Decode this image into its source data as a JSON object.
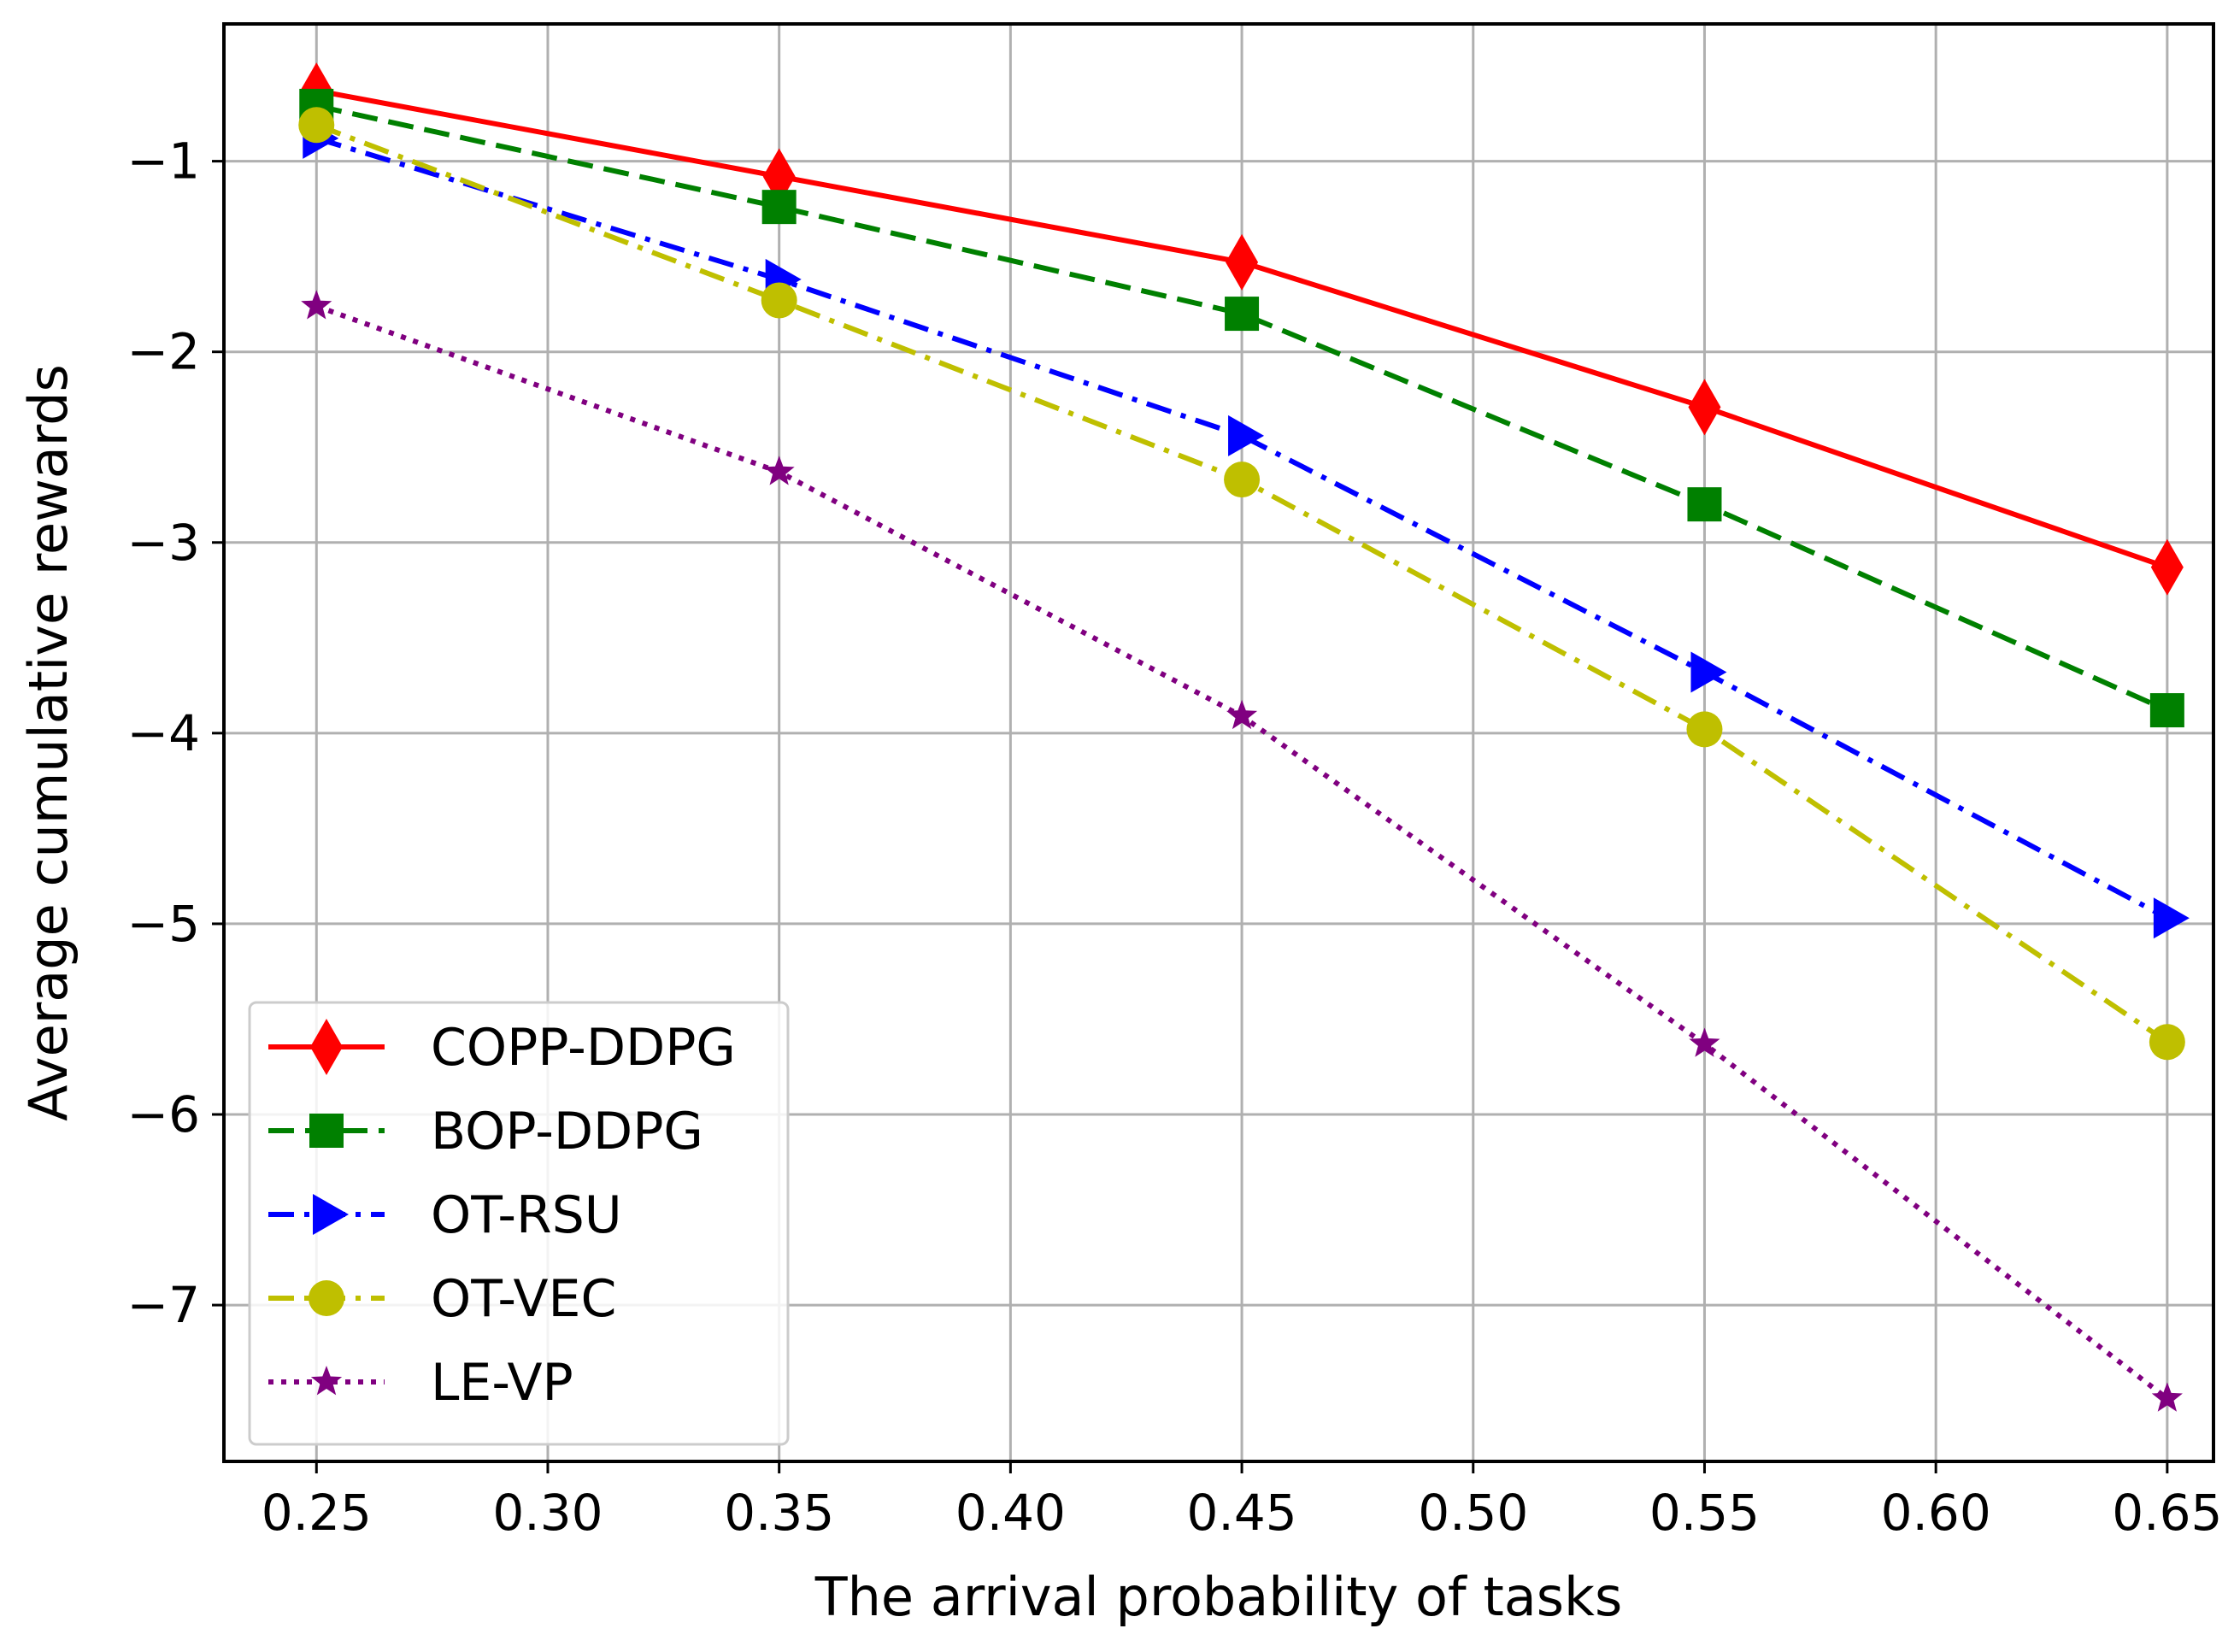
{
  "chart_data": {
    "type": "line",
    "title": "",
    "xlabel": "The arrival probability of tasks",
    "ylabel": "Average cumulative rewards",
    "x": [
      0.25,
      0.35,
      0.45,
      0.55,
      0.65
    ],
    "xlim": [
      0.23,
      0.66
    ],
    "ylim": [
      -7.82,
      -0.28
    ],
    "xticks": [
      0.25,
      0.3,
      0.35,
      0.4,
      0.45,
      0.5,
      0.55,
      0.6,
      0.65
    ],
    "xtick_labels": [
      "0.25",
      "0.30",
      "0.35",
      "0.40",
      "0.45",
      "0.50",
      "0.55",
      "0.60",
      "0.65"
    ],
    "yticks": [
      -1,
      -2,
      -3,
      -4,
      -5,
      -6,
      -7
    ],
    "ytick_labels": [
      "−1",
      "−2",
      "−3",
      "−4",
      "−5",
      "−6",
      "−7"
    ],
    "grid": true,
    "legend_position": "lower-left",
    "series": [
      {
        "name": "COPP-DDPG",
        "values": [
          -0.63,
          -1.08,
          -1.53,
          -2.29,
          -3.13
        ],
        "color": "#ff0000",
        "dash": "solid",
        "marker": "diamond"
      },
      {
        "name": "BOP-DDPG",
        "values": [
          -0.71,
          -1.24,
          -1.8,
          -2.8,
          -3.88
        ],
        "color": "#008000",
        "dash": "dashed",
        "marker": "square"
      },
      {
        "name": "OT-RSU",
        "values": [
          -0.88,
          -1.62,
          -2.44,
          -3.68,
          -4.97
        ],
        "color": "#0000ff",
        "dash": "dashdot",
        "marker": "triangle-right"
      },
      {
        "name": "OT-VEC",
        "values": [
          -0.81,
          -1.73,
          -2.67,
          -3.98,
          -5.62
        ],
        "color": "#bfbf00",
        "dash": "dashdot",
        "marker": "circle"
      },
      {
        "name": "LE-VP",
        "values": [
          -1.76,
          -2.63,
          -3.91,
          -5.63,
          -7.49
        ],
        "color": "#800080",
        "dash": "dotted",
        "marker": "star"
      }
    ]
  }
}
